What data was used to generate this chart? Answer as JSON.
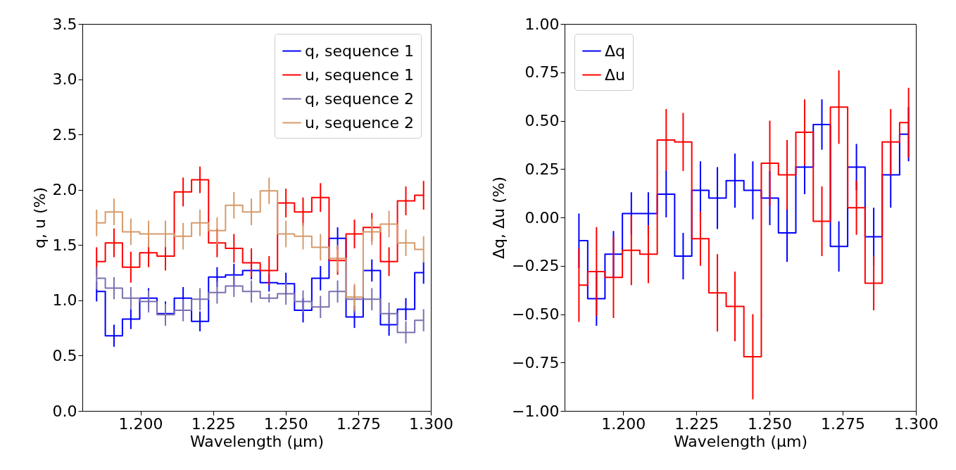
{
  "chart_data": [
    {
      "type": "step",
      "xlabel": "Wavelength (μm)",
      "ylabel": "q, u (%)",
      "legend": "top right",
      "grid": false,
      "x": [
        1.1849,
        1.1909,
        1.1967,
        1.2028,
        1.2086,
        1.2147,
        1.2205,
        1.2264,
        1.2322,
        1.2382,
        1.2443,
        1.2501,
        1.256,
        1.262,
        1.2679,
        1.2737,
        1.2797,
        1.2856,
        1.2914,
        1.2975
      ],
      "xlim": [
        1.18,
        1.3
      ],
      "xticks": [
        {
          "value": 1.2,
          "label": "1.200"
        },
        {
          "value": 1.225,
          "label": "1.225"
        },
        {
          "value": 1.25,
          "label": "1.250"
        },
        {
          "value": 1.275,
          "label": "1.275"
        },
        {
          "value": 1.3,
          "label": "1.300"
        }
      ],
      "ylim": [
        0,
        3.5
      ],
      "yticks": [
        {
          "value": 0,
          "label": "0.0"
        },
        {
          "value": 0.5,
          "label": "0.5"
        },
        {
          "value": 1,
          "label": "1.0"
        },
        {
          "value": 1.5,
          "label": "1.5"
        },
        {
          "value": 2,
          "label": "2.0"
        },
        {
          "value": 2.5,
          "label": "2.5"
        },
        {
          "value": 3,
          "label": "3.0"
        },
        {
          "value": 3.5,
          "label": "3.5"
        }
      ],
      "series": [
        {
          "name": "q, sequence 1",
          "color": "#0000ff",
          "values": [
            1.08,
            0.68,
            0.83,
            1.02,
            0.88,
            1.02,
            0.81,
            1.21,
            1.23,
            1.27,
            1.16,
            1.15,
            0.91,
            1.2,
            1.56,
            0.85,
            1.27,
            0.78,
            0.92,
            1.25
          ],
          "errors": [
            0.09,
            0.1,
            0.09,
            0.09,
            0.11,
            0.1,
            0.09,
            0.09,
            0.1,
            0.08,
            0.08,
            0.1,
            0.11,
            0.11,
            0.1,
            0.1,
            0.1,
            0.1,
            0.1,
            0.1
          ]
        },
        {
          "name": "u, sequence 1",
          "color": "#ff0000",
          "values": [
            1.35,
            1.52,
            1.3,
            1.43,
            1.4,
            1.98,
            2.09,
            1.52,
            1.47,
            1.34,
            1.27,
            1.88,
            1.8,
            1.93,
            1.36,
            1.6,
            1.66,
            1.35,
            1.9,
            1.95
          ],
          "errors": [
            0.13,
            0.13,
            0.14,
            0.13,
            0.13,
            0.13,
            0.12,
            0.13,
            0.13,
            0.13,
            0.13,
            0.13,
            0.13,
            0.13,
            0.13,
            0.13,
            0.13,
            0.13,
            0.13,
            0.13
          ]
        },
        {
          "name": "q, sequence 2",
          "color": "#7a70b0",
          "values": [
            1.2,
            1.11,
            1.02,
            0.99,
            0.87,
            0.91,
            1.01,
            1.07,
            1.13,
            1.08,
            1.02,
            1.06,
            0.99,
            0.94,
            1.08,
            1.01,
            1.01,
            0.88,
            0.71,
            0.82
          ],
          "errors": [
            0.1,
            0.1,
            0.1,
            0.1,
            0.1,
            0.1,
            0.1,
            0.1,
            0.1,
            0.1,
            0.04,
            0.1,
            0.1,
            0.1,
            0.1,
            0.12,
            0.1,
            0.1,
            0.1,
            0.1
          ]
        },
        {
          "name": "u, sequence 2",
          "color": "#d69a6a",
          "values": [
            1.7,
            1.8,
            1.62,
            1.6,
            1.6,
            1.58,
            1.7,
            1.63,
            1.86,
            1.8,
            1.99,
            1.6,
            1.58,
            1.48,
            1.38,
            1.03,
            1.62,
            1.69,
            1.52,
            1.46
          ],
          "errors": [
            0.12,
            0.12,
            0.12,
            0.12,
            0.12,
            0.12,
            0.12,
            0.12,
            0.12,
            0.12,
            0.12,
            0.12,
            0.12,
            0.12,
            0.12,
            0.12,
            0.12,
            0.12,
            0.12,
            0.12
          ]
        }
      ]
    },
    {
      "type": "step",
      "xlabel": "Wavelength (μm)",
      "ylabel": "Δq, Δu (%)",
      "legend": "top left",
      "grid": false,
      "x": [
        1.1849,
        1.1909,
        1.1967,
        1.2028,
        1.2086,
        1.2147,
        1.2205,
        1.2264,
        1.2322,
        1.2382,
        1.2443,
        1.2501,
        1.256,
        1.262,
        1.2679,
        1.2737,
        1.2797,
        1.2856,
        1.2914,
        1.2975
      ],
      "xlim": [
        1.18,
        1.3
      ],
      "xticks": [
        {
          "value": 1.2,
          "label": "1.200"
        },
        {
          "value": 1.225,
          "label": "1.225"
        },
        {
          "value": 1.25,
          "label": "1.250"
        },
        {
          "value": 1.275,
          "label": "1.275"
        },
        {
          "value": 1.3,
          "label": "1.300"
        }
      ],
      "ylim": [
        -1,
        1
      ],
      "yticks": [
        {
          "value": -1,
          "label": "−1.00"
        },
        {
          "value": -0.75,
          "label": "−0.75"
        },
        {
          "value": -0.5,
          "label": "−0.50"
        },
        {
          "value": -0.25,
          "label": "−0.25"
        },
        {
          "value": 0,
          "label": "0.00"
        },
        {
          "value": 0.25,
          "label": "0.25"
        },
        {
          "value": 0.5,
          "label": "0.50"
        },
        {
          "value": 0.75,
          "label": "0.75"
        },
        {
          "value": 1,
          "label": "1.00"
        }
      ],
      "series": [
        {
          "name": "Δq",
          "color": "#0000ff",
          "values": [
            -0.12,
            -0.42,
            -0.19,
            0.02,
            0.02,
            0.12,
            -0.2,
            0.14,
            0.1,
            0.19,
            0.14,
            0.1,
            -0.08,
            0.26,
            0.48,
            -0.15,
            0.26,
            -0.1,
            0.22,
            0.43
          ],
          "errors": [
            0.14,
            0.14,
            0.12,
            0.11,
            0.11,
            0.12,
            0.12,
            0.15,
            0.16,
            0.14,
            0.15,
            0.14,
            0.15,
            0.14,
            0.13,
            0.13,
            0.12,
            0.15,
            0.17,
            0.14
          ]
        },
        {
          "name": "Δu",
          "color": "#ff0000",
          "values": [
            -0.35,
            -0.28,
            -0.31,
            -0.17,
            -0.19,
            0.4,
            0.39,
            -0.11,
            -0.39,
            -0.46,
            -0.72,
            0.28,
            0.22,
            0.44,
            -0.02,
            0.57,
            0.05,
            -0.34,
            0.39,
            0.49
          ],
          "errors": [
            0.19,
            0.23,
            0.21,
            0.18,
            0.15,
            0.16,
            0.15,
            0.14,
            0.2,
            0.18,
            0.22,
            0.22,
            0.18,
            0.17,
            0.18,
            0.19,
            0.14,
            0.14,
            0.17,
            0.18
          ]
        }
      ]
    }
  ]
}
